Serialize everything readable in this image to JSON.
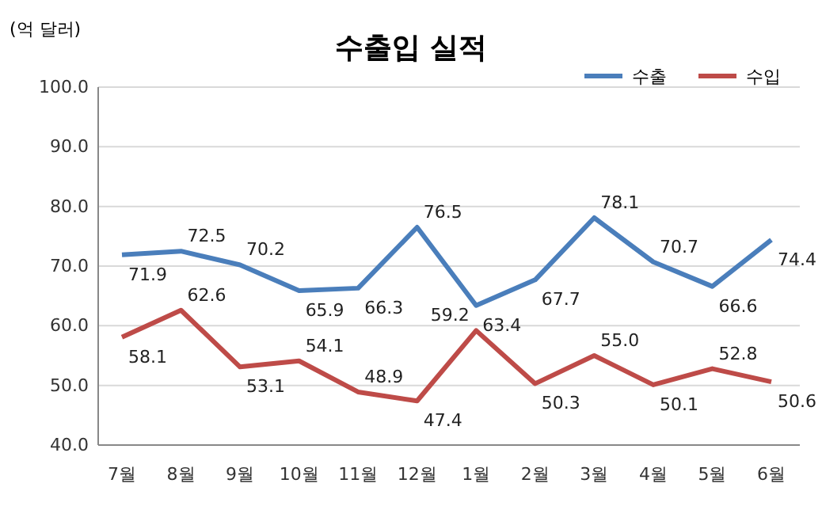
{
  "chart_data": {
    "type": "line",
    "title": "수출입 실적",
    "ylabel": "(억 달러)",
    "categories": [
      "7월",
      "8월",
      "9월",
      "10월",
      "11월",
      "12월",
      "1월",
      "2월",
      "3월",
      "4월",
      "5월",
      "6월"
    ],
    "series": [
      {
        "name": "수출",
        "color": "#4a7ebb",
        "values": [
          71.9,
          72.5,
          70.2,
          65.9,
          66.3,
          76.5,
          63.4,
          67.7,
          78.1,
          70.7,
          66.6,
          74.4
        ],
        "value_labels": [
          "71.9",
          "72.5",
          "70.2",
          "65.9",
          "66.3",
          "76.5",
          "63.4",
          "67.7",
          "78.1",
          "70.7",
          "66.6",
          "74.4"
        ]
      },
      {
        "name": "수입",
        "color": "#be4b48",
        "values": [
          58.1,
          62.6,
          53.1,
          54.1,
          48.9,
          47.4,
          59.2,
          50.3,
          55.0,
          50.1,
          52.8,
          50.6
        ],
        "value_labels": [
          "58.1",
          "62.6",
          "53.1",
          "54.1",
          "48.9",
          "47.4",
          "59.2",
          "50.3",
          "55.0",
          "50.1",
          "52.8",
          "50.6"
        ]
      }
    ],
    "ylim": [
      40,
      100
    ],
    "yticks": [
      {
        "value": 40,
        "label": "40.0"
      },
      {
        "value": 50,
        "label": "50.0"
      },
      {
        "value": 60,
        "label": "60.0"
      },
      {
        "value": 70,
        "label": "70.0"
      },
      {
        "value": 80,
        "label": "80.0"
      },
      {
        "value": 90,
        "label": "90.0"
      },
      {
        "value": 100,
        "label": "100.0"
      }
    ],
    "grid": "y",
    "legend": "top right",
    "marker": "none",
    "line_style": "solid"
  }
}
